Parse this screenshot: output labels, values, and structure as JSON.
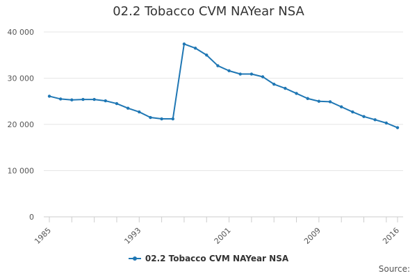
{
  "chart_data": {
    "type": "line",
    "title": "02.2 Tobacco CVM NAYear NSA",
    "xlabel": "",
    "ylabel": "",
    "x": [
      1985,
      1986,
      1987,
      1988,
      1989,
      1990,
      1991,
      1992,
      1993,
      1994,
      1995,
      1996,
      1997,
      1998,
      1999,
      2000,
      2001,
      2002,
      2003,
      2004,
      2005,
      2006,
      2007,
      2008,
      2009,
      2010,
      2011,
      2012,
      2013,
      2014,
      2015,
      2016
    ],
    "series": [
      {
        "name": "02.2 Tobacco CVM NAYear NSA",
        "color": "#1f77b4",
        "values": [
          26100,
          25500,
          25300,
          25400,
          25400,
          25100,
          24500,
          23500,
          22700,
          21500,
          21200,
          21200,
          37400,
          36500,
          35000,
          32700,
          31600,
          30900,
          30900,
          30300,
          28700,
          27800,
          26700,
          25600,
          25000,
          24900,
          23800,
          22700,
          21700,
          21000,
          20300,
          19300
        ]
      }
    ],
    "ylim": [
      0,
      40000
    ],
    "y_ticks": [
      "0",
      "10 000",
      "20 000",
      "30 000",
      "40 000"
    ],
    "y_tick_values": [
      0,
      10000,
      20000,
      30000,
      40000
    ],
    "x_ticks": [
      "1985",
      "1993",
      "2001",
      "2009",
      "2016"
    ],
    "x_tick_values": [
      1985,
      1993,
      2001,
      2009,
      2016
    ],
    "grid": true,
    "legend_position": "bottom-center"
  },
  "source_label": "Source:"
}
